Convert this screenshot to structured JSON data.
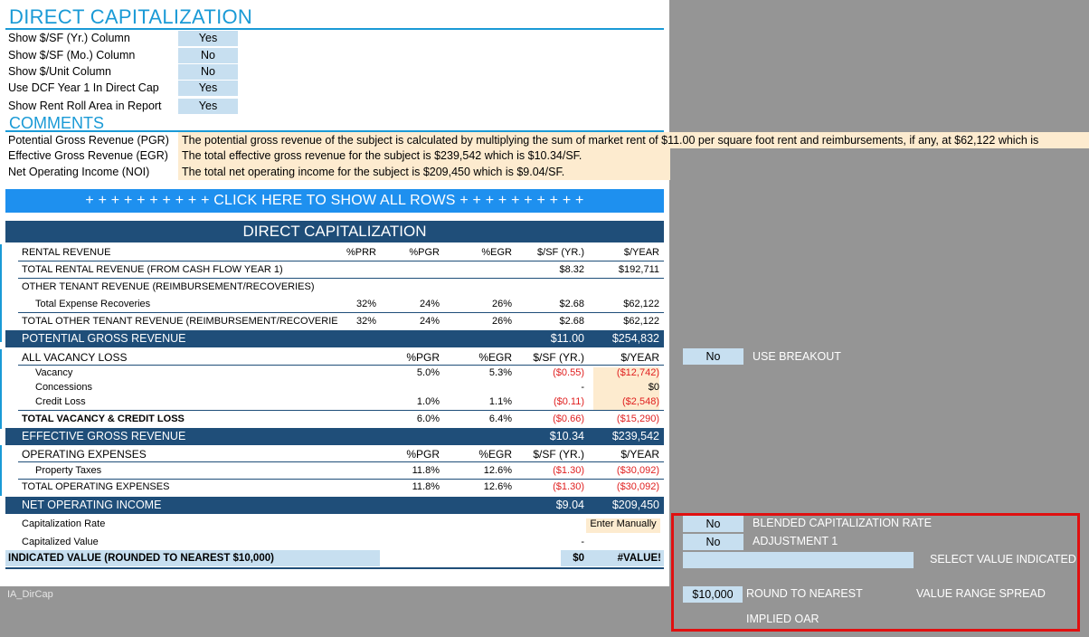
{
  "header": {
    "title": "DIRECT CAPITALIZATION"
  },
  "options": [
    {
      "label": "Show $/SF (Yr.) Column",
      "value": "Yes"
    },
    {
      "label": "Show $/SF (Mo.) Column",
      "value": "No"
    },
    {
      "label": "Show $/Unit Column",
      "value": "No"
    },
    {
      "label": "Use DCF Year 1 In Direct Cap",
      "value": "Yes"
    },
    {
      "label": "Show Rent Roll Area in Report",
      "value": "Yes"
    }
  ],
  "comments": {
    "title": "COMMENTS",
    "items": [
      {
        "label": "Potential Gross Revenue (PGR)",
        "text": "The potential gross revenue of the subject is calculated by multiplying the sum of market rent of $11.00 per square foot rent and reimbursements, if any, at $62,122 which is"
      },
      {
        "label": "Effective Gross Revenue (EGR)",
        "text": "The total effective gross revenue for the subject is $239,542 which is $10.34/SF."
      },
      {
        "label": "Net Operating Income (NOI)",
        "text": "The total net operating income for the subject is $209,450 which is $9.04/SF."
      }
    ]
  },
  "show_rows_button": "+ + + + + + + + + + CLICK HERE TO SHOW ALL ROWS + + + + + + + + + +",
  "table": {
    "title": "DIRECT CAPITALIZATION",
    "rental_header": {
      "label": "RENTAL REVENUE",
      "prr": "%PRR",
      "pgr": "%PGR",
      "egr": "%EGR",
      "sf": "$/SF (YR.)",
      "yr": "$/YEAR"
    },
    "total_rental": {
      "label": "TOTAL RENTAL REVENUE (FROM CASH FLOW YEAR 1)",
      "sf": "$8.32",
      "yr": "$192,711"
    },
    "other_tenant": {
      "label": "OTHER TENANT REVENUE (REIMBURSEMENT/RECOVERIES)"
    },
    "expense_recoveries": {
      "label": "Total Expense Recoveries",
      "prr": "32%",
      "pgr": "24%",
      "egr": "26%",
      "sf": "$2.68",
      "yr": "$62,122"
    },
    "total_other": {
      "label": "TOTAL OTHER TENANT REVENUE (REIMBURSEMENT/RECOVERIE",
      "prr": "32%",
      "pgr": "24%",
      "egr": "26%",
      "sf": "$2.68",
      "yr": "$62,122"
    },
    "pgr_bar": {
      "label": "POTENTIAL GROSS REVENUE",
      "sf": "$11.00",
      "yr": "$254,832"
    },
    "vacancy_header": {
      "label": "ALL VACANCY LOSS",
      "pgr": "%PGR",
      "egr": "%EGR",
      "sf": "$/SF (YR.)",
      "yr": "$/YEAR"
    },
    "vacancy": {
      "label": "Vacancy",
      "pgr": "5.0%",
      "egr": "5.3%",
      "sf": "($0.55)",
      "yr": "($12,742)"
    },
    "concessions": {
      "label": "Concessions",
      "sf": "-",
      "yr": "$0"
    },
    "credit_loss": {
      "label": "Credit Loss",
      "pgr": "1.0%",
      "egr": "1.1%",
      "sf": "($0.11)",
      "yr": "($2,548)"
    },
    "total_vacancy": {
      "label": "TOTAL VACANCY & CREDIT LOSS",
      "pgr": "6.0%",
      "egr": "6.4%",
      "sf": "($0.66)",
      "yr": "($15,290)"
    },
    "egr_bar": {
      "label": "EFFECTIVE GROSS REVENUE",
      "sf": "$10.34",
      "yr": "$239,542"
    },
    "opex_header": {
      "label": "OPERATING EXPENSES",
      "pgr": "%PGR",
      "egr": "%EGR",
      "sf": "$/SF (YR.)",
      "yr": "$/YEAR"
    },
    "property_taxes": {
      "label": "Property Taxes",
      "pgr": "11.8%",
      "egr": "12.6%",
      "sf": "($1.30)",
      "yr": "($30,092)"
    },
    "total_opex": {
      "label": "TOTAL OPERATING EXPENSES",
      "pgr": "11.8%",
      "egr": "12.6%",
      "sf": "($1.30)",
      "yr": "($30,092)"
    },
    "noi_bar": {
      "label": "NET OPERATING INCOME",
      "sf": "$9.04",
      "yr": "$209,450"
    },
    "cap_rate": {
      "label": "Capitalization Rate",
      "value": "Enter Manually"
    },
    "cap_value": {
      "label": "Capitalized Value",
      "value": "-"
    },
    "indicated": {
      "label": "INDICATED VALUE (ROUNDED TO NEAREST $10,000)",
      "sf": "$0",
      "yr": "#VALUE!"
    }
  },
  "sheet_tab": "IA_DirCap",
  "side_panel": {
    "use_breakout": {
      "value": "No",
      "label": "USE BREAKOUT"
    },
    "blended_cap": {
      "value": "No",
      "label": "BLENDED CAPITALIZATION RATE"
    },
    "adjustment": {
      "value": "No",
      "label": "ADJUSTMENT 1"
    },
    "select_value_label": "SELECT VALUE INDICATED",
    "round": {
      "value": "$10,000",
      "label": "ROUND TO NEAREST"
    },
    "value_range_label": "VALUE RANGE SPREAD",
    "implied_oar_label": "IMPLIED OAR"
  }
}
